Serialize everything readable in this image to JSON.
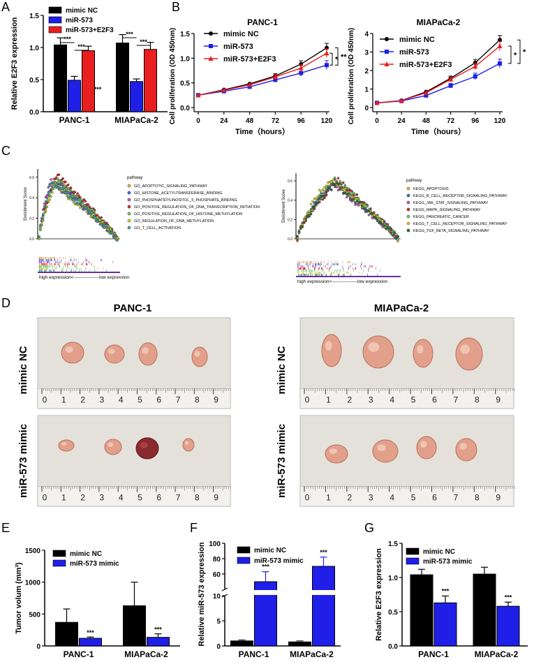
{
  "panel_letters": [
    "A",
    "B",
    "C",
    "D",
    "E",
    "F",
    "G"
  ],
  "colors": {
    "black": "#000000",
    "blue": "#1f1fe8",
    "red": "#e81f1f",
    "pink": "#e06666"
  },
  "chart_data": [
    {
      "id": "A",
      "type": "bar",
      "categories": [
        "PANC-1",
        "MIAPaCa-2"
      ],
      "series": [
        {
          "name": "mimic NC",
          "values": [
            1.04,
            1.07
          ],
          "errors": [
            0.11,
            0.13
          ]
        },
        {
          "name": "miR-573",
          "values": [
            0.49,
            0.47
          ],
          "errors": [
            0.06,
            0.04
          ]
        },
        {
          "name": "miR-573+E2F3",
          "values": [
            0.95,
            0.97
          ],
          "errors": [
            0.07,
            0.11
          ]
        }
      ],
      "ylabel": "Relative E2F3 expression",
      "ylim": [
        0,
        1.5
      ],
      "yticks": [
        "0.0",
        "0.5",
        "1.0",
        "1.5"
      ],
      "sig": [
        "***",
        "***",
        "***",
        "***",
        "***"
      ]
    },
    {
      "id": "B1",
      "type": "line",
      "title": "PANC-1",
      "x": [
        0,
        24,
        48,
        72,
        96,
        120
      ],
      "xticks": [
        "0",
        "24",
        "48",
        "72",
        "96",
        "120"
      ],
      "xlabel": "Time（hours）",
      "ylabel": "Cell proliferation (OD 450nm)",
      "ylim": [
        0,
        1.5
      ],
      "yticks": [
        "0.0",
        "0.5",
        "1.0",
        "1.5"
      ],
      "series": [
        {
          "name": "mimic NC",
          "values": [
            0.25,
            0.36,
            0.48,
            0.64,
            0.88,
            1.21
          ]
        },
        {
          "name": "miR-573",
          "values": [
            0.25,
            0.33,
            0.42,
            0.56,
            0.7,
            0.86
          ]
        },
        {
          "name": "miR-573+E2F3",
          "values": [
            0.25,
            0.35,
            0.46,
            0.62,
            0.8,
            1.1
          ]
        }
      ],
      "sig": [
        "**",
        "*"
      ]
    },
    {
      "id": "B2",
      "type": "line",
      "title": "MIAPaCa-2",
      "x": [
        0,
        24,
        48,
        72,
        96,
        120
      ],
      "xticks": [
        "0",
        "24",
        "48",
        "72",
        "96",
        "120"
      ],
      "xlabel": "Time（hours）",
      "ylabel": "Cell proliferation (OD 450nm)",
      "ylim": [
        0,
        4
      ],
      "yticks": [
        "0",
        "1",
        "2",
        "3",
        "4"
      ],
      "series": [
        {
          "name": "mimic NC",
          "values": [
            0.25,
            0.38,
            0.85,
            1.58,
            2.42,
            3.65
          ]
        },
        {
          "name": "miR-573",
          "values": [
            0.25,
            0.35,
            0.65,
            1.18,
            1.68,
            2.38
          ]
        },
        {
          "name": "miR-573+E2F3",
          "values": [
            0.25,
            0.37,
            0.8,
            1.52,
            2.22,
            3.32
          ]
        }
      ],
      "sig": [
        "*",
        "*"
      ]
    },
    {
      "id": "E",
      "type": "bar",
      "categories": [
        "PANC-1",
        "MIAPaCa-2"
      ],
      "series": [
        {
          "name": "mimic NC",
          "values": [
            370,
            630
          ],
          "errors": [
            210,
            370
          ]
        },
        {
          "name": "miR-573 mimic",
          "values": [
            120,
            135
          ],
          "errors": [
            20,
            55
          ]
        }
      ],
      "ylabel": "Tumor volum (mm³)",
      "ylim": [
        0,
        1500
      ],
      "yticks": [
        "0",
        "500",
        "1000",
        "1500"
      ],
      "sig": [
        "***",
        "***"
      ]
    },
    {
      "id": "F",
      "type": "bar",
      "categories": [
        "PANC-1",
        "MIAPaCa-2"
      ],
      "series": [
        {
          "name": "mimic NC",
          "values": [
            1.0,
            0.8
          ],
          "errors": [
            0.2,
            0.2
          ]
        },
        {
          "name": "miR-573 mimic",
          "values": [
            50,
            70
          ],
          "errors": [
            13,
            12
          ]
        }
      ],
      "ylabel": "Relative miR-573 expression",
      "yticks": [
        "0",
        "5",
        "10",
        "60",
        "80",
        "100"
      ],
      "sig": [
        "***",
        "***"
      ]
    },
    {
      "id": "G",
      "type": "bar",
      "categories": [
        "PANC-1",
        "MIAPaCa-2"
      ],
      "series": [
        {
          "name": "mimic NC",
          "values": [
            1.04,
            1.05
          ],
          "errors": [
            0.08,
            0.1
          ]
        },
        {
          "name": "miR-573 mimic",
          "values": [
            0.63,
            0.58
          ],
          "errors": [
            0.1,
            0.06
          ]
        }
      ],
      "ylabel": "Relative E2F3 expression",
      "ylim": [
        0,
        1.5
      ],
      "yticks": [
        "0.0",
        "0.5",
        "1.0",
        "1.5"
      ],
      "sig": [
        "***",
        "***"
      ]
    }
  ],
  "gsea": {
    "left": {
      "ylabel": "Enrichment Score",
      "yticks": [
        "0.0",
        "0.2",
        "0.4",
        "0.6"
      ],
      "legend_title": "pathway",
      "pathways": [
        "GO_APOPTOTIC_SIGNALING_PATHWAY",
        "GO_HISTONE_ACETYLTRANSFERASE_BINDING",
        "GO_PHOSPHATIDYLINOSITOL_5_PHOSPHATE_BINDING",
        "GO_POSITIVE_REGULATION_OF_DNA_TRANSCRIPTION_INITIATION",
        "GO_POSITIVE_REGULATION_OF_HISTONE_METHYLATION",
        "GO_REGULATION_OF_DNA_METHYLATION",
        "GO_T_CELL_ACTIVATION"
      ],
      "colors": [
        "#e6a040",
        "#3c6ad0",
        "#c050c0",
        "#c03030",
        "#6abf6a",
        "#c8c820",
        "#3aa0a0"
      ],
      "axis_text": "high expression<-----------------low exprexxion"
    },
    "right": {
      "ylabel": "Enrichment Score",
      "yticks": [
        "0.0",
        "0.2",
        "0.4",
        "0.6"
      ],
      "legend_title": "pathway",
      "pathways": [
        "KEGG_APOPTOSIS",
        "KEGG_B_CELL_RECEPTOR_SIGNALING_PATHWAY",
        "KEGG_JAK_STAT_SIGNALING_PATHWAY",
        "KEGG_MAPK_SIGNALING_PATHWAY",
        "KEGG_PANCREATIC_CANCER",
        "KEGG_T_CELL_RECEPTOR_SIGNALING_PATHWAY",
        "KEGG_TGF_BETA_SIGNALING_PATHWAY"
      ],
      "colors": [
        "#e6a040",
        "#3c6ad0",
        "#c050c0",
        "#c03030",
        "#6abf6a",
        "#c8c820",
        "#2e6a4a"
      ],
      "axis_text": "high expression<-----------------low exprexxion"
    }
  },
  "panel_d": {
    "col_titles": [
      "PANC-1",
      "MIAPaCa-2"
    ],
    "row_labels": [
      "mimic NC",
      "miR-573 mimic"
    ],
    "ruler_numbers": [
      "0",
      "1",
      "2",
      "3",
      "4",
      "5",
      "6",
      "7",
      "8",
      "9"
    ]
  }
}
